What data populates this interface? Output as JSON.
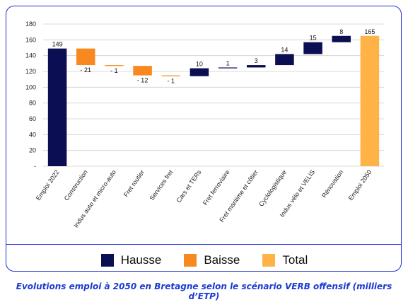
{
  "chart_data": {
    "type": "bar",
    "subtype": "waterfall",
    "categories": [
      "Emploi 2022",
      "Construction",
      "Indus auto et micro-auto",
      "Fret routier",
      "Services fret",
      "Cars et TERs",
      "Fret ferroviaire",
      "Fret maritime et côtier",
      "Cyclologistique",
      "Indus vélo et VELIS",
      "Rénovation",
      "Emploi 2050"
    ],
    "changes": [
      149,
      -21,
      -1,
      -12,
      -1,
      10,
      1,
      3,
      14,
      15,
      8,
      165
    ],
    "kinds": [
      "total",
      "baisse",
      "baisse",
      "baisse",
      "baisse",
      "hausse",
      "hausse",
      "hausse",
      "hausse",
      "hausse",
      "hausse",
      "total"
    ],
    "value_labels": [
      "149",
      "- 21",
      "- 1",
      "- 12",
      "- 1",
      "10",
      "1",
      "3",
      "14",
      "15",
      "8",
      "165"
    ],
    "ylim": [
      0,
      180
    ],
    "yticks": [
      "-",
      "20",
      "40",
      "60",
      "80",
      "100",
      "120",
      "140",
      "160",
      "180"
    ],
    "grid": true,
    "legend_position": "bottom"
  },
  "legend": [
    {
      "label": "Hausse",
      "color": "#0b0e52"
    },
    {
      "label": "Baisse",
      "color": "#f7891f"
    },
    {
      "label": "Total",
      "color": "#ffb347"
    }
  ],
  "colors": {
    "hausse": "#0b0e52",
    "baisse": "#f7891f",
    "first_total": "#0b0e52",
    "last_total": "#ffb347",
    "frame": "#1f2bd6",
    "caption": "#1a3ad1"
  },
  "caption": "Evolutions emploi à 2050 en Bretagne selon le scénario VERB offensif (milliers d’ETP)"
}
